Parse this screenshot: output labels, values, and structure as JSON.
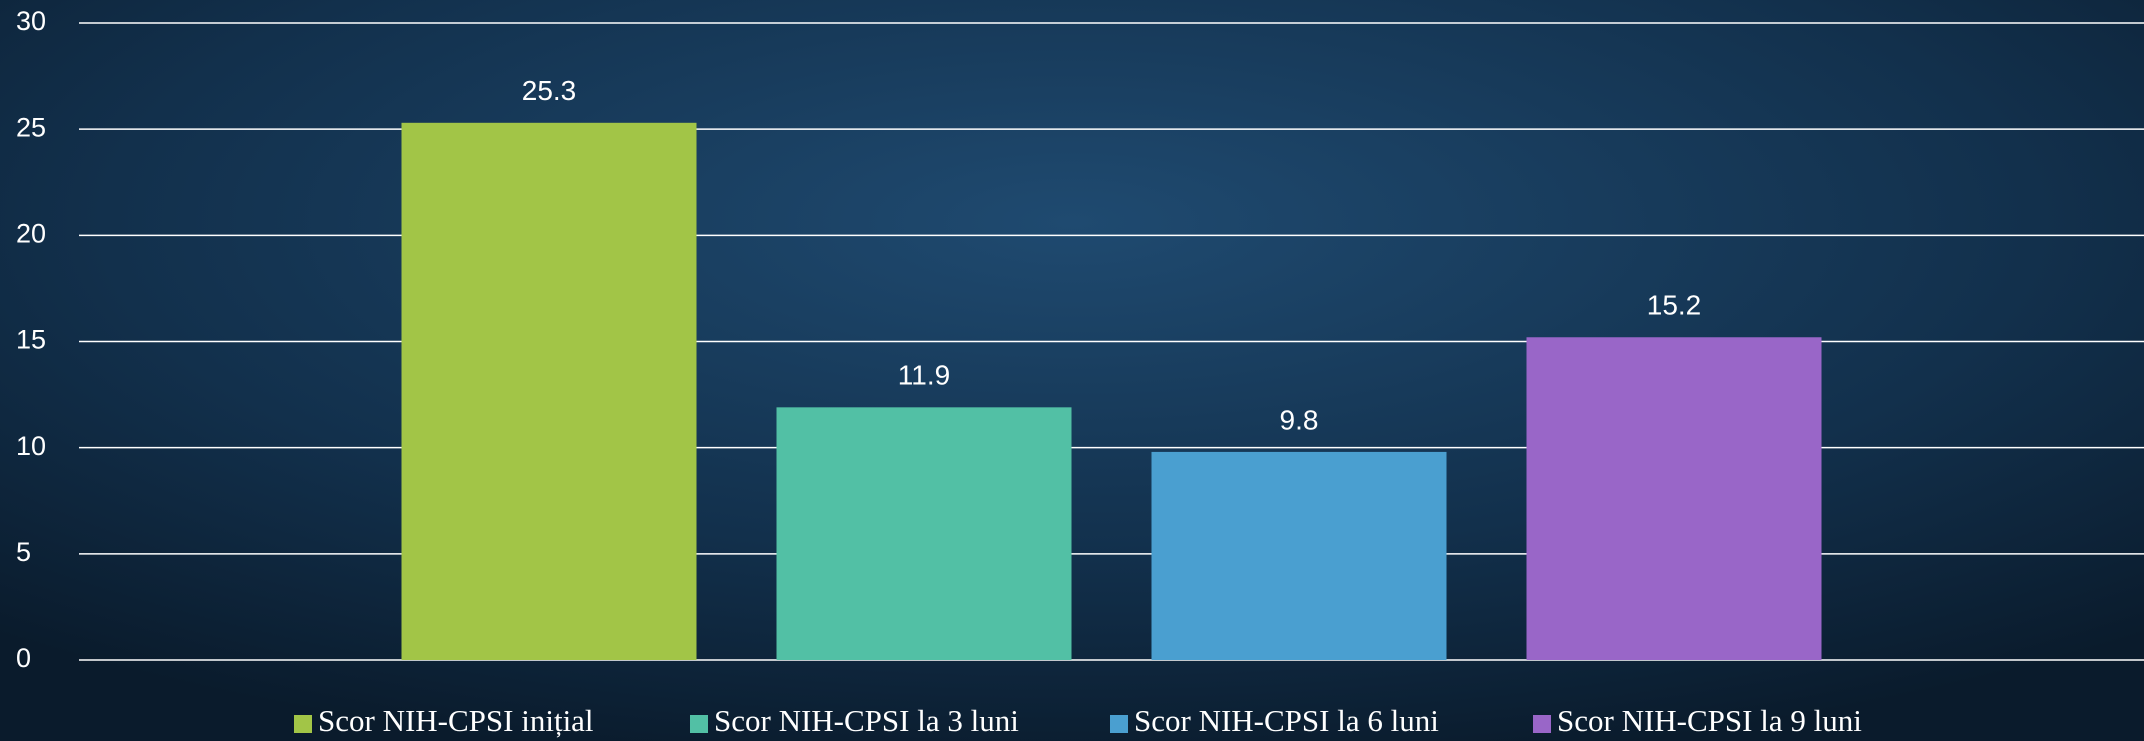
{
  "chart_data": {
    "type": "bar",
    "series": [
      {
        "name": "Scor NIH-CPSI inițial",
        "color": "#a2c547",
        "values": [
          25.3
        ]
      },
      {
        "name": "Scor NIH-CPSI la 3 luni",
        "color": "#52c0a5",
        "values": [
          11.9
        ]
      },
      {
        "name": "Scor NIH-CPSI la 6 luni",
        "color": "#4a9fd0",
        "values": [
          9.8
        ]
      },
      {
        "name": "Scor NIH-CPSI la 9 luni",
        "color": "#9966c8",
        "values": [
          15.2
        ]
      }
    ],
    "ylim": [
      0,
      30
    ],
    "yticks": [
      0,
      5,
      10,
      15,
      20,
      25,
      30
    ],
    "grid": true,
    "legend": "bottom"
  }
}
